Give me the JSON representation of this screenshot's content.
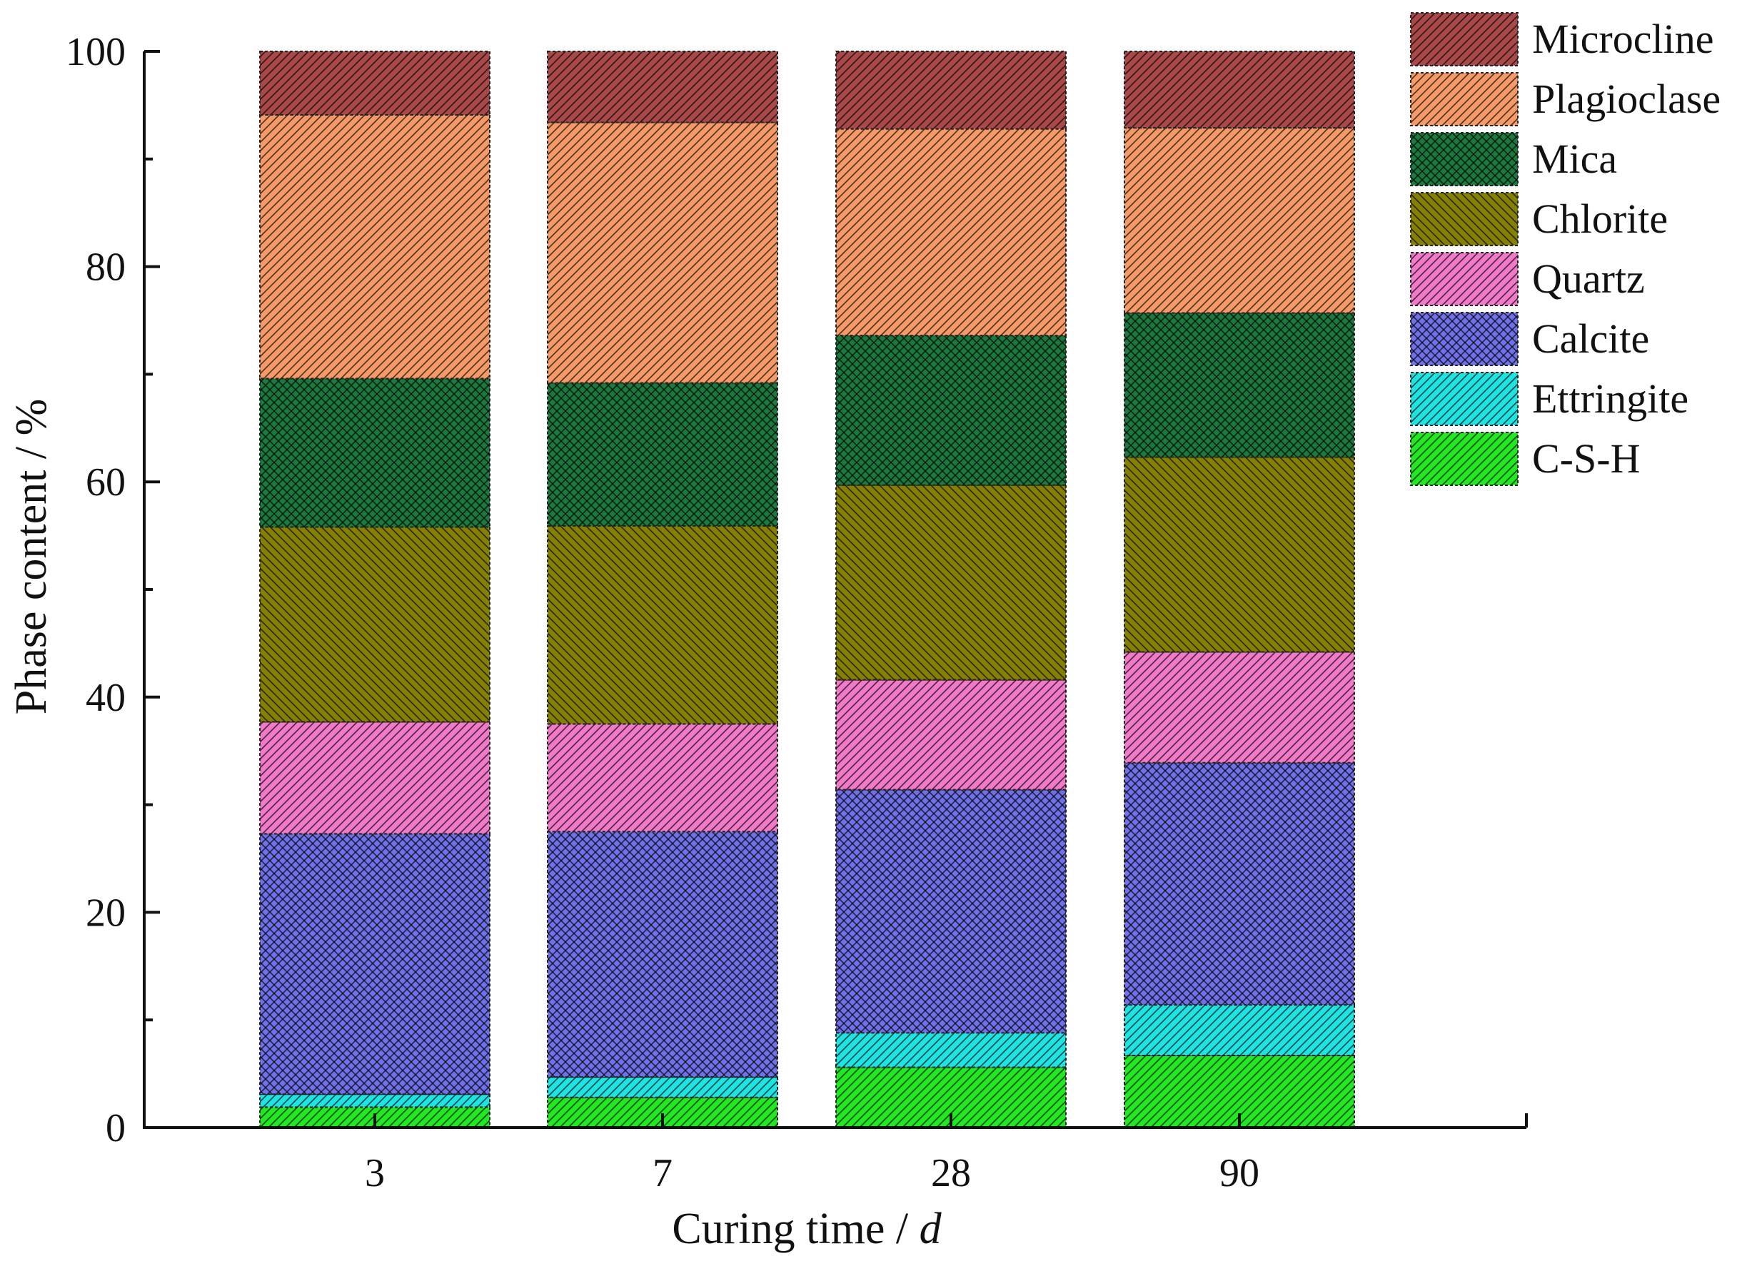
{
  "chart_data": {
    "type": "bar",
    "stacked": true,
    "categories": [
      "3",
      "7",
      "28",
      "90"
    ],
    "xlabel": "Curing time / ",
    "xlabel_italic": "d",
    "ylabel": "Phase content / %",
    "ylim": [
      0,
      100
    ],
    "yticks": [
      "0",
      "20",
      "40",
      "60",
      "80",
      "100"
    ],
    "legend_position": "top-right",
    "series": [
      {
        "name": "C-S-H",
        "color": "#22e822",
        "pattern": "diag-fwd",
        "values": [
          1.9,
          2.8,
          5.6,
          6.7
        ]
      },
      {
        "name": "Ettringite",
        "color": "#1de3e3",
        "pattern": "diag-fwd",
        "values": [
          1.2,
          1.9,
          3.2,
          4.7
        ]
      },
      {
        "name": "Calcite",
        "color": "#7070e8",
        "pattern": "cross",
        "values": [
          24.2,
          22.8,
          22.6,
          22.5
        ]
      },
      {
        "name": "Quartz",
        "color": "#f07ac8",
        "pattern": "diag-fwd",
        "values": [
          10.4,
          10.0,
          10.2,
          10.3
        ]
      },
      {
        "name": "Chlorite",
        "color": "#858000",
        "pattern": "diag-back",
        "values": [
          18.1,
          18.4,
          18.1,
          18.1
        ]
      },
      {
        "name": "Mica",
        "color": "#1c7a3e",
        "pattern": "cross",
        "values": [
          13.8,
          13.3,
          13.9,
          13.4
        ]
      },
      {
        "name": "Plagioclase",
        "color": "#f59a66",
        "pattern": "diag-fwd",
        "values": [
          24.5,
          24.2,
          19.2,
          17.2
        ]
      },
      {
        "name": "Microcline",
        "color": "#a84848",
        "pattern": "diag-fwd",
        "values": [
          5.9,
          6.6,
          7.2,
          7.1
        ]
      }
    ],
    "legend_order": [
      "Microcline",
      "Plagioclase",
      "Mica",
      "Chlorite",
      "Quartz",
      "Calcite",
      "Ettringite",
      "C-S-H"
    ]
  }
}
